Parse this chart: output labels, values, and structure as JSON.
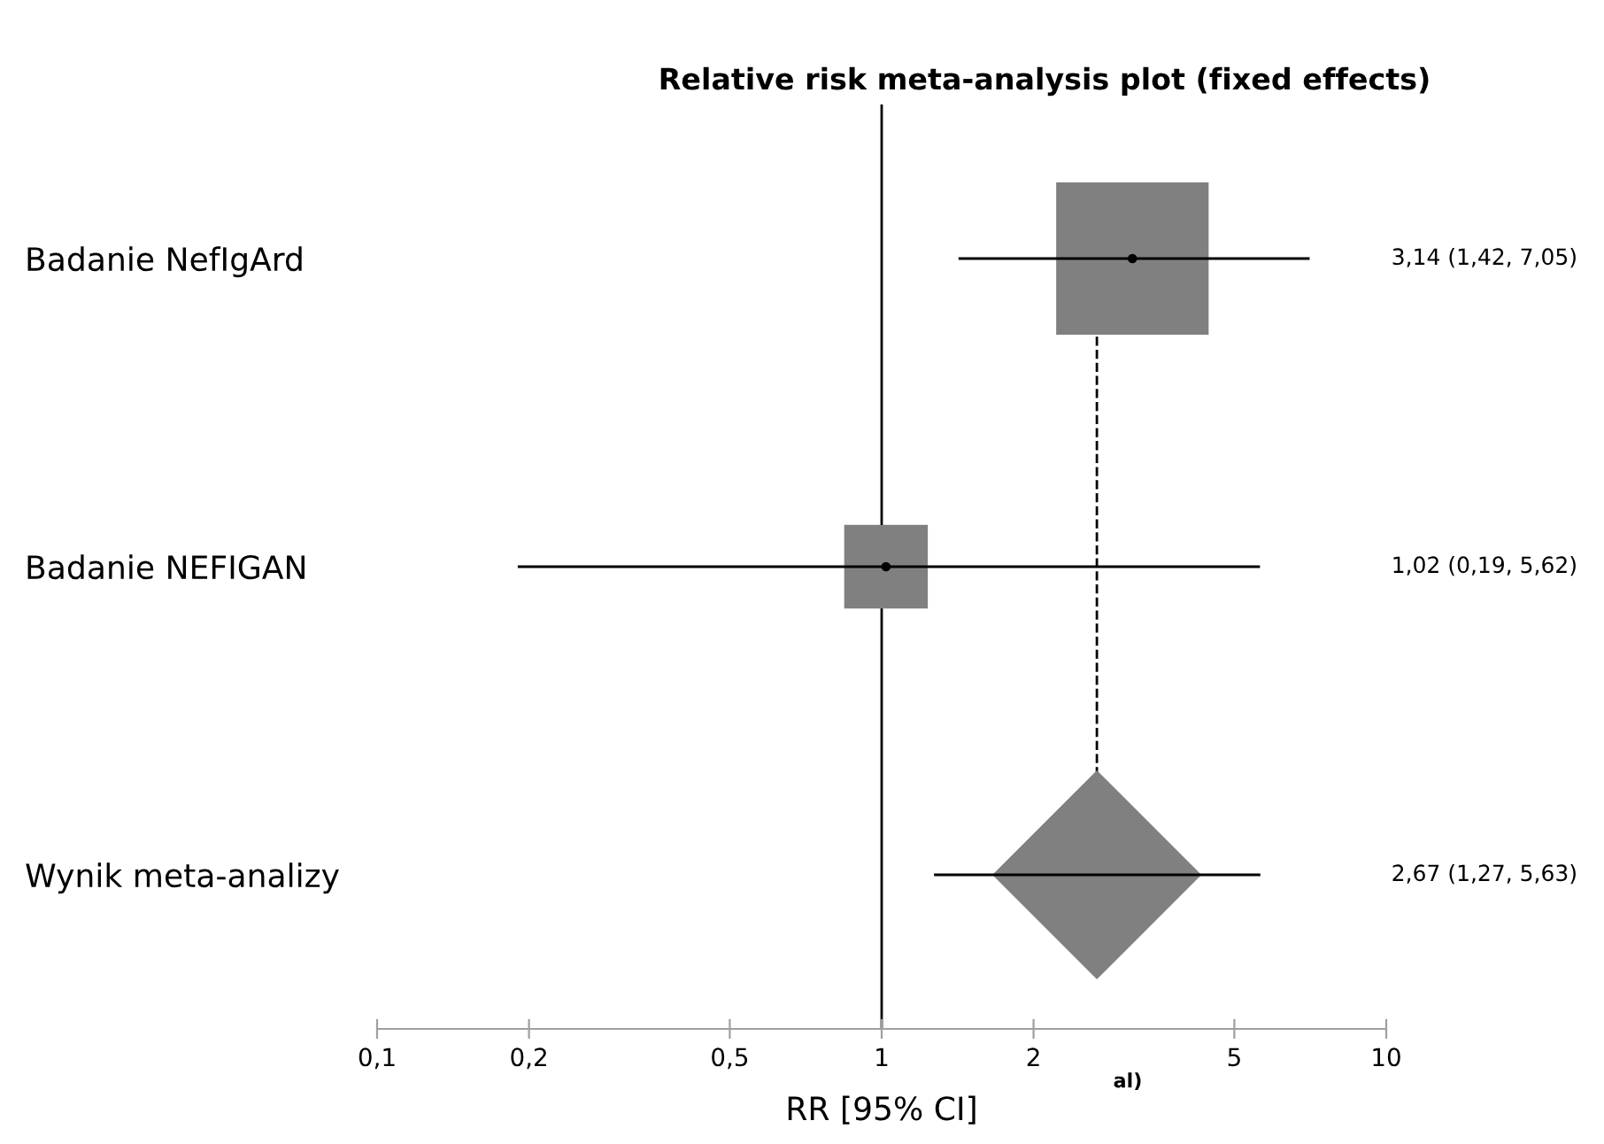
{
  "chart_data": {
    "type": "scatter",
    "title": "Relative risk meta-analysis plot (fixed effects)",
    "xlabel": "RR [95% CI]",
    "categories": [
      "Badanie NefIgArd",
      "Badanie NEFIGAN",
      "Wynik meta-analizy"
    ],
    "orientation": "horizontal",
    "log": "x",
    "xlim": [
      0.1,
      10
    ],
    "xticks": [
      {
        "value": 0.1,
        "label": "0,1"
      },
      {
        "value": 0.2,
        "label": "0,2"
      },
      {
        "value": 0.5,
        "label": "0,5"
      },
      1,
      2,
      5,
      10
    ],
    "series": [
      {
        "marker": "circle",
        "color": "#000000",
        "values": [
          3.14,
          1.02,
          null
        ],
        "errors": [
          [
            1.42,
            7.05
          ],
          [
            0.19,
            5.62
          ],
          null
        ]
      },
      {
        "type": "scatter",
        "marker": "diamond",
        "color": "#808080",
        "values": [
          null,
          null,
          2.67
        ],
        "errors": [
          null,
          null,
          [
            1.27,
            5.63
          ]
        ]
      }
    ],
    "value_labels": [
      "3,14 (1,42, 7,05)",
      "1,02 (0,19, 5,62)",
      "2,67 (1,27, 5,63)"
    ],
    "ref_lines": [
      {
        "axis": "x",
        "value": 1,
        "color": "#000000",
        "line_style": "solid"
      },
      {
        "axis": "x",
        "value": 2.67,
        "color": "#000000",
        "line_style": "dashed"
      }
    ],
    "annotations": [
      "al)"
    ],
    "grid": false,
    "legend": false
  }
}
